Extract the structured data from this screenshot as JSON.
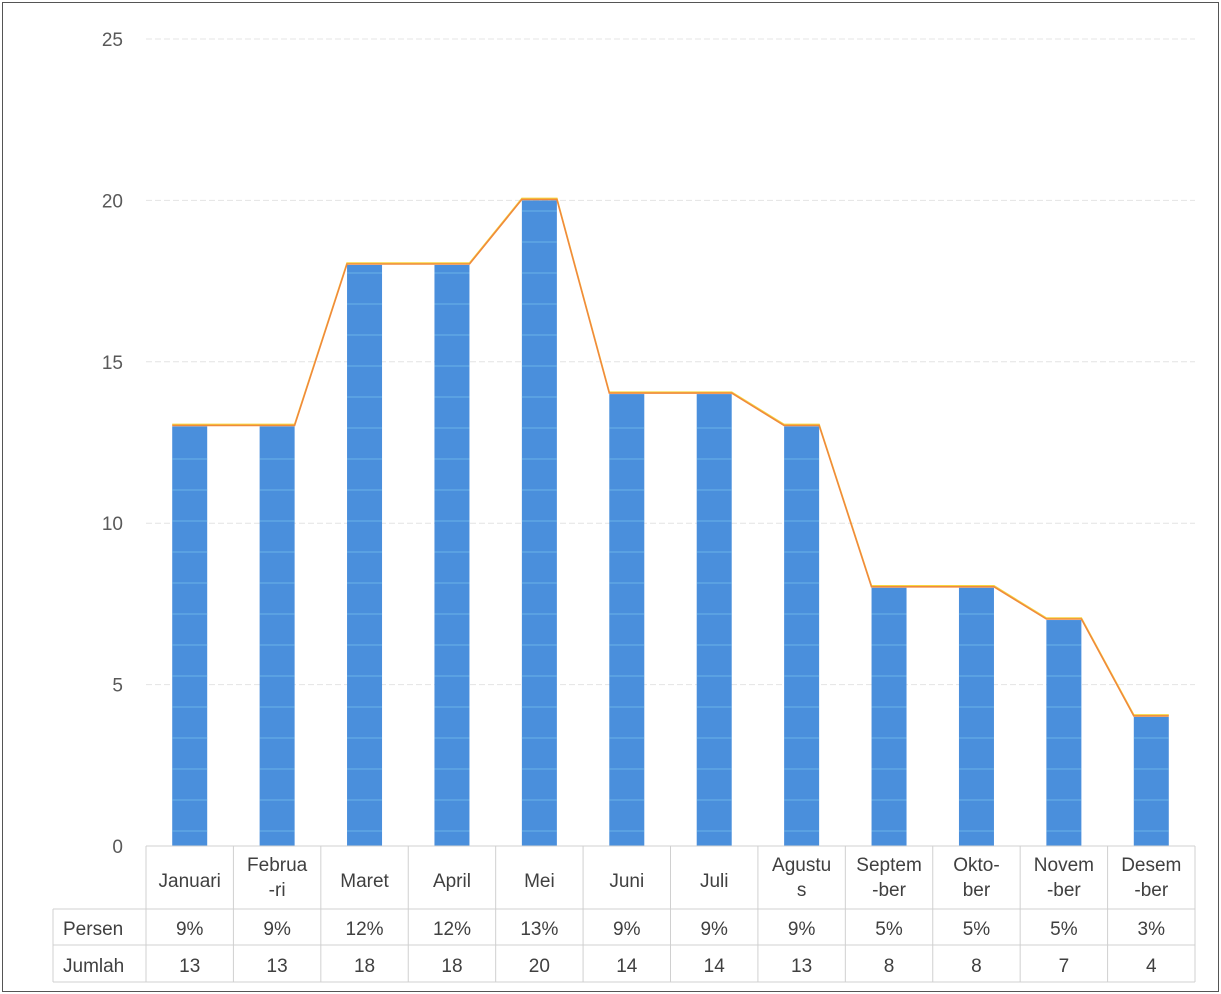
{
  "chart_data": {
    "type": "bar",
    "categories": [
      "Januari",
      "Februa\n-ri",
      "Maret",
      "April",
      "Mei",
      "Juni",
      "Juli",
      "Agustu\ns",
      "Septem\n-ber",
      "Okto-\nber",
      "Novem\n-ber",
      "Desem\n-ber"
    ],
    "values": [
      13,
      13,
      18,
      18,
      20,
      14,
      14,
      13,
      8,
      8,
      7,
      4
    ],
    "ylim": [
      0,
      25
    ],
    "yticks": [
      0,
      5,
      10,
      15,
      20,
      25
    ],
    "grid": true,
    "line_overlay": true,
    "data_table": {
      "rows": [
        {
          "label": "Persen",
          "values": [
            "9%",
            "9%",
            "12%",
            "12%",
            "13%",
            "9%",
            "9%",
            "9%",
            "5%",
            "5%",
            "5%",
            "3%"
          ]
        },
        {
          "label": "Jumlah",
          "values": [
            "13",
            "13",
            "18",
            "18",
            "20",
            "14",
            "14",
            "13",
            "8",
            "8",
            "7",
            "4"
          ]
        }
      ]
    },
    "colors": {
      "bar": "#4a8fdc",
      "bar_stripe": "#7cc4ee",
      "line": "#f08a3c",
      "line_highlight": "#f7d63e",
      "grid": "#e4e4e4",
      "table_border": "#d0d0d0"
    }
  }
}
